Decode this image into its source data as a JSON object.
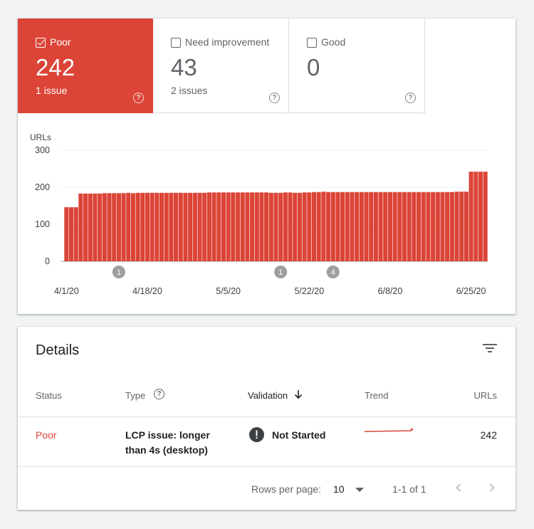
{
  "tabs": [
    {
      "label": "Poor",
      "value": "242",
      "sub": "1 issue",
      "checked": true
    },
    {
      "label": "Need improvement",
      "value": "43",
      "sub": "2 issues",
      "checked": false
    },
    {
      "label": "Good",
      "value": "0",
      "sub": "",
      "checked": false
    }
  ],
  "help_glyph": "?",
  "colors": {
    "poor": "#db4437",
    "annotation": "#9e9e9e"
  },
  "chart_data": {
    "type": "bar",
    "ylabel": "URLs",
    "ylim": [
      0,
      300
    ],
    "yticks": [
      "0",
      "100",
      "200",
      "300"
    ],
    "xticks": [
      {
        "label": "4/1/20",
        "index": 0
      },
      {
        "label": "4/18/20",
        "index": 17
      },
      {
        "label": "5/5/20",
        "index": 34
      },
      {
        "label": "5/22/20",
        "index": 51
      },
      {
        "label": "6/8/20",
        "index": 68
      },
      {
        "label": "6/25/20",
        "index": 85
      }
    ],
    "series": [
      {
        "color": "#db4437",
        "values": [
          146,
          146,
          146,
          183,
          183,
          183,
          183,
          183,
          184,
          184,
          184,
          184,
          184,
          185,
          184,
          185,
          185,
          185,
          185,
          185,
          185,
          185,
          185,
          185,
          185,
          185,
          185,
          185,
          185,
          185,
          186,
          186,
          186,
          186,
          186,
          186,
          186,
          186,
          186,
          186,
          186,
          186,
          186,
          185,
          185,
          185,
          186,
          186,
          185,
          185,
          186,
          186,
          187,
          187,
          188,
          187,
          187,
          187,
          187,
          187,
          187,
          187,
          187,
          187,
          187,
          187,
          187,
          187,
          187,
          187,
          187,
          187,
          187,
          187,
          187,
          187,
          187,
          187,
          187,
          187,
          187,
          187,
          188,
          188,
          188,
          242,
          242,
          242,
          242
        ]
      }
    ],
    "annotations": [
      {
        "label": "1",
        "index": 11
      },
      {
        "label": "1",
        "index": 45
      },
      {
        "label": "4",
        "index": 56
      }
    ]
  },
  "details": {
    "title": "Details",
    "columns": {
      "status": "Status",
      "type": "Type",
      "validation": "Validation",
      "trend": "Trend",
      "urls": "URLs"
    },
    "rows": [
      {
        "status": "Poor",
        "type_line1": "LCP issue: longer",
        "type_line2": "than 4s (desktop)",
        "validation": "Not Started",
        "urls": "242"
      }
    ],
    "pagination": {
      "rows_per_page_label": "Rows per page:",
      "rows_per_page": "10",
      "range": "1-1 of 1"
    }
  }
}
